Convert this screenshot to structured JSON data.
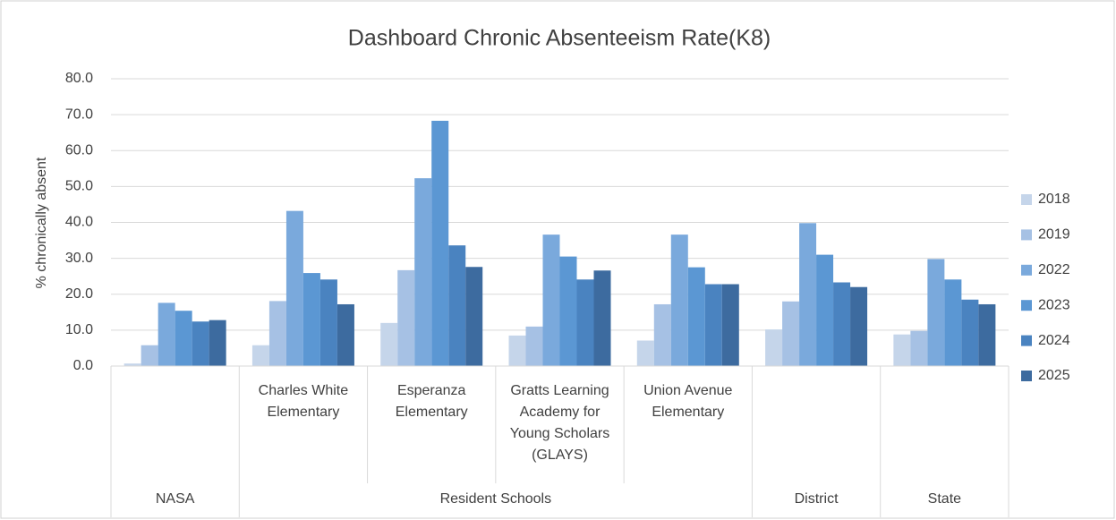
{
  "chart_data": {
    "type": "bar",
    "title": "Dashboard Chronic Absenteeism Rate(K8)",
    "y_label": "% chronically absent",
    "categories": [
      [
        "NASA",
        null
      ],
      [
        "Resident Schools",
        "Charles White Elementary"
      ],
      [
        "Resident Schools",
        "Esperanza Elementary"
      ],
      [
        "Resident Schools",
        "Gratts Learning Academy for Young Scholars (GLAYS)"
      ],
      [
        "Resident Schools",
        "Union Avenue Elementary"
      ],
      [
        "District",
        null
      ],
      [
        "State",
        null
      ]
    ],
    "series": [
      {
        "name": "2018",
        "color": "#c5d5ea",
        "values": [
          0.7,
          5.8,
          12.0,
          8.5,
          7.1,
          10.2,
          8.8
        ]
      },
      {
        "name": "2019",
        "color": "#a6c1e4",
        "values": [
          5.8,
          18.1,
          26.7,
          11.0,
          17.2,
          18.0,
          9.8
        ]
      },
      {
        "name": "2022",
        "color": "#7aa9dc",
        "values": [
          17.6,
          43.2,
          52.3,
          36.6,
          36.6,
          39.8,
          29.8
        ]
      },
      {
        "name": "2023",
        "color": "#5b97d3",
        "values": [
          15.4,
          25.9,
          68.3,
          30.5,
          27.5,
          31.0,
          24.1
        ]
      },
      {
        "name": "2024",
        "color": "#4a83c0",
        "values": [
          12.4,
          24.1,
          33.6,
          24.1,
          22.8,
          23.3,
          18.5
        ]
      },
      {
        "name": "2025",
        "color": "#3d6b9f",
        "values": [
          12.8,
          17.2,
          27.6,
          26.6,
          22.8,
          22.0,
          17.2
        ]
      }
    ],
    "ylim": [
      0,
      80
    ],
    "yticks": [
      {
        "value": 0,
        "label": "0.0"
      },
      {
        "value": 10,
        "label": "10.0"
      },
      {
        "value": 20,
        "label": "20.0"
      },
      {
        "value": 30,
        "label": "30.0"
      },
      {
        "value": 40,
        "label": "40.0"
      },
      {
        "value": 50,
        "label": "50.0"
      },
      {
        "value": 60,
        "label": "60.0"
      },
      {
        "value": 70,
        "label": "70.0"
      },
      {
        "value": 80,
        "label": "80.0"
      }
    ],
    "grid": true,
    "legend": "right"
  }
}
